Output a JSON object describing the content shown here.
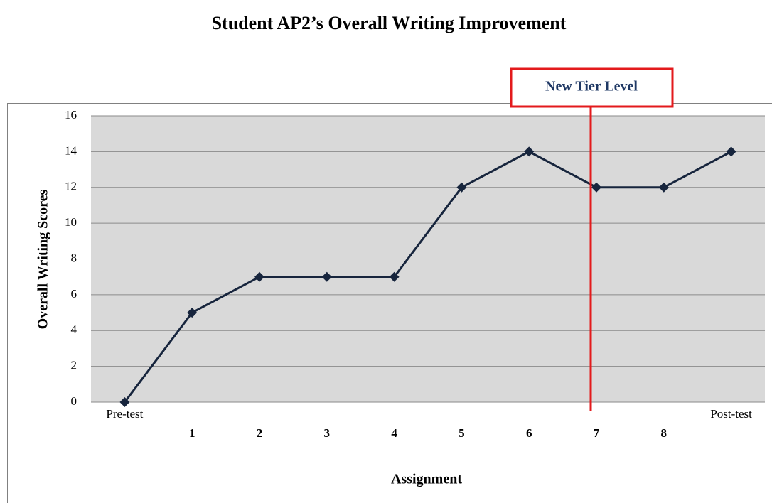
{
  "chart_data": {
    "type": "line",
    "title": "Student AP2’s Overall Writing Improvement",
    "x_label": "Assignment",
    "y_label": "Overall Writing Scores",
    "annotation": "New Tier Level",
    "categories": [
      "Pre-test",
      "1",
      "2",
      "3",
      "4",
      "5",
      "6",
      "7",
      "8",
      "Post-test"
    ],
    "series": [
      {
        "name": "Overall Writing Scores",
        "color": "#17253d",
        "values": [
          0,
          5,
          7,
          7,
          7,
          12,
          14,
          12,
          12,
          14
        ]
      }
    ],
    "ylim": [
      0,
      16
    ],
    "yticks": [
      0,
      2,
      4,
      6,
      8,
      10,
      12,
      14,
      16
    ],
    "grid": true
  }
}
